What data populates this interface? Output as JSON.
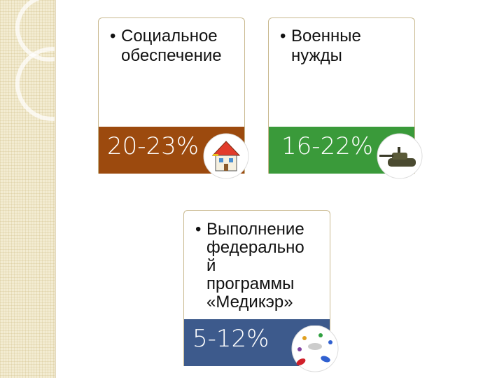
{
  "cards": [
    {
      "lines": [
        "Социальное",
        "обеспечение"
      ],
      "share": "20-23%"
    },
    {
      "lines": [
        "Военные",
        "нужды"
      ],
      "share": "16-22%"
    },
    {
      "lines": [
        "Выполнение",
        "федерально",
        "й",
        "программы",
        "«Медикэр»"
      ],
      "share": "5-12%"
    }
  ]
}
